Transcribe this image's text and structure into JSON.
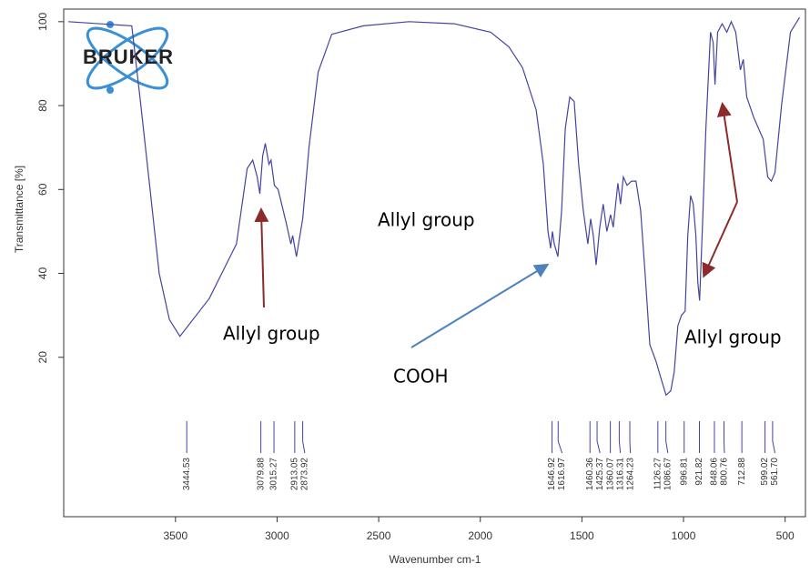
{
  "chart_data": {
    "type": "line",
    "logo": "BRUKER",
    "x_label": "Wavenumber cm-1",
    "y_label": "Transmittance [%]",
    "color": "#4444a0",
    "xlim": [
      4050,
      400
    ],
    "ylim": [
      -18,
      103
    ],
    "xticks": [
      3500,
      3000,
      2500,
      2000,
      1500,
      1000,
      500
    ],
    "yticks": [
      20,
      40,
      60,
      80,
      100
    ],
    "x": [
      4027,
      3715,
      3670,
      3625,
      3580,
      3530,
      3478,
      3334,
      3200,
      3147,
      3120,
      3098,
      3085,
      3071,
      3058,
      3040,
      3030,
      3013,
      2995,
      2955,
      2932,
      2923,
      2905,
      2874,
      2843,
      2798,
      2731,
      2575,
      2351,
      2128,
      1949,
      1859,
      1792,
      1725,
      1690,
      1667,
      1654,
      1645,
      1636,
      1618,
      1600,
      1582,
      1560,
      1538,
      1516,
      1493,
      1471,
      1457,
      1444,
      1430,
      1412,
      1395,
      1377,
      1359,
      1346,
      1323,
      1310,
      1296,
      1278,
      1256,
      1234,
      1211,
      1189,
      1166,
      1135,
      1108,
      1086,
      1063,
      1046,
      1028,
      1010,
      992,
      979,
      965,
      952,
      939,
      930,
      921,
      907,
      890,
      867,
      854,
      845,
      832,
      810,
      787,
      765,
      743,
      720,
      706,
      689,
      653,
      608,
      586,
      568,
      550,
      518,
      474,
      429
    ],
    "values": [
      100,
      99,
      80,
      60,
      40,
      29,
      25,
      34,
      47,
      65,
      67,
      63,
      59,
      68,
      71,
      66,
      67,
      61,
      60,
      52,
      47,
      49,
      44,
      53,
      70,
      88,
      97,
      99,
      100,
      99.5,
      97.5,
      94,
      89,
      79,
      66,
      50,
      46,
      50,
      47,
      44,
      55,
      74.5,
      82,
      81,
      66,
      55,
      47,
      53,
      49,
      42,
      51,
      56.5,
      50,
      54,
      51,
      61.5,
      56.5,
      63,
      61,
      62,
      62,
      55,
      40,
      23,
      19,
      14.5,
      11,
      12,
      16.5,
      27.5,
      30,
      31,
      49,
      58.5,
      56.5,
      49,
      38,
      33.5,
      51,
      74.5,
      97.5,
      95,
      85,
      97.5,
      99.5,
      97.5,
      100,
      97.5,
      88.5,
      91,
      82,
      77,
      72,
      63,
      62,
      64,
      80,
      97.5,
      101
    ],
    "peaks": [
      3444.53,
      3079.88,
      3015.27,
      2913.05,
      2873.92,
      1646.92,
      1616.97,
      1460.36,
      1425.37,
      1360.07,
      1316.31,
      1264.23,
      1126.27,
      1086.67,
      996.81,
      921.82,
      848.06,
      800.76,
      712.88,
      599.02,
      561.7
    ],
    "peak_labels": [
      "3444.53",
      "3079.88",
      "3015.27",
      "2913.05",
      "2873.92",
      "1646.92",
      "1616.97",
      "1460.36",
      "1425.37",
      "1360.07",
      "1316.31",
      "1264.23",
      "1126.27",
      "1086.67",
      "996.81",
      "921.82",
      "848.06",
      "800.76",
      "712.88",
      "599.02",
      "561.70"
    ],
    "annotations": [
      "Allyl group",
      "Allyl group",
      "Allyl group",
      "COOH"
    ]
  }
}
